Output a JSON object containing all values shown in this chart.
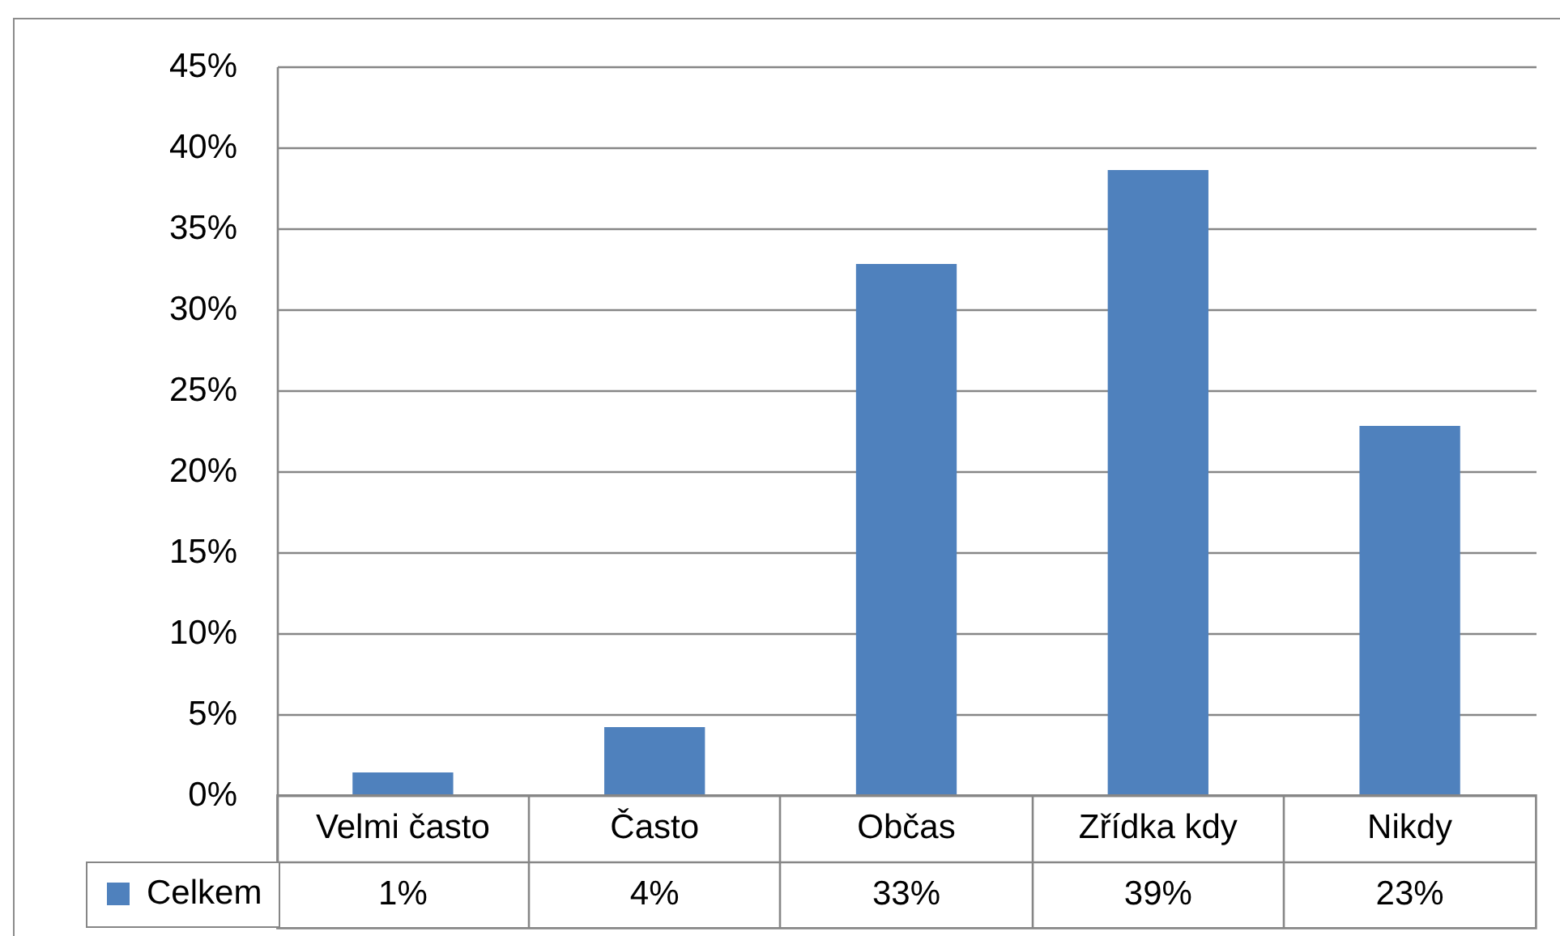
{
  "chart_data": {
    "type": "bar",
    "categories": [
      "Velmi často",
      "Často",
      "Občas",
      "Zřídka kdy",
      "Nikdy"
    ],
    "series": [
      {
        "name": "Celkem",
        "color": "#4f81bd",
        "values": [
          1.4,
          4.2,
          32.8,
          38.6,
          22.8
        ],
        "value_labels": [
          "1%",
          "4%",
          "33%",
          "39%",
          "23%"
        ]
      }
    ],
    "ylim": [
      0,
      45
    ],
    "yticks": [
      {
        "value": 0,
        "label": "0%"
      },
      {
        "value": 5,
        "label": "5%"
      },
      {
        "value": 10,
        "label": "10%"
      },
      {
        "value": 15,
        "label": "15%"
      },
      {
        "value": 20,
        "label": "20%"
      },
      {
        "value": 25,
        "label": "25%"
      },
      {
        "value": 30,
        "label": "30%"
      },
      {
        "value": 35,
        "label": "35%"
      },
      {
        "value": 40,
        "label": "40%"
      },
      {
        "value": 45,
        "label": "45%"
      }
    ],
    "grid": "y",
    "legend": "bottom left"
  }
}
